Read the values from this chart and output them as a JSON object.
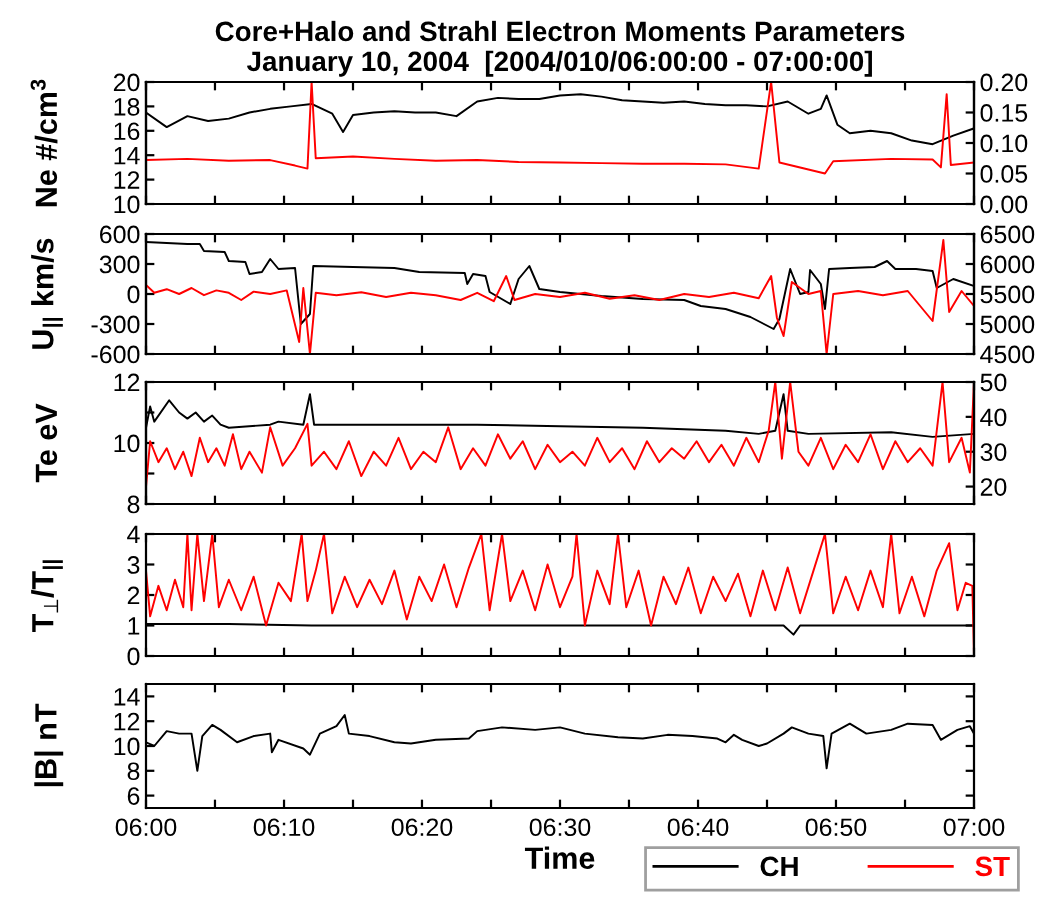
{
  "chart_data": [
    {
      "type": "line",
      "title": "Core+Halo and Strahl Electron Moments Parameters",
      "subtitle": "January 10, 2004  [2004/010/06:00:00 - 07:00:00]",
      "ylabel": "Ne #/cm$^{3}$",
      "legend": "bottom right",
      "tick_labels": "y",
      "grid": false,
      "xlim": [
        6.0,
        7.0
      ],
      "xticks": [
        {
          "value": 6.0,
          "label": null
        },
        {
          "value": 6.0833,
          "label": null
        },
        {
          "value": 6.1667,
          "label": null
        },
        {
          "value": 6.25,
          "label": null
        },
        {
          "value": 6.3333,
          "label": null
        },
        {
          "value": 6.4167,
          "label": null
        },
        {
          "value": 6.5,
          "label": null
        },
        {
          "value": 6.5833,
          "label": null
        },
        {
          "value": 6.6667,
          "label": null
        },
        {
          "value": 6.75,
          "label": null
        },
        {
          "value": 6.8333,
          "label": null
        },
        {
          "value": 6.9167,
          "label": null
        },
        {
          "value": 7.0,
          "label": null
        }
      ],
      "ylim": [
        10,
        20
      ],
      "yticks": [
        10,
        12,
        14,
        16,
        18,
        20
      ],
      "y2lim": [
        0,
        0.2
      ],
      "y2ticks": [
        {
          "value": 0,
          "label": "0.00"
        },
        {
          "value": 0.05,
          "label": "0.05"
        },
        {
          "value": 0.1,
          "label": "0.10"
        },
        {
          "value": 0.15,
          "label": "0.15"
        },
        {
          "value": 0.2,
          "label": "0.20"
        }
      ],
      "series": [
        {
          "name": "CH",
          "color": "#000000",
          "x": [
            6.0,
            6.025,
            6.05,
            6.075,
            6.1,
            6.125,
            6.15,
            6.175,
            6.2,
            6.225,
            6.238,
            6.25,
            6.275,
            6.3,
            6.325,
            6.35,
            6.375,
            6.4,
            6.425,
            6.45,
            6.475,
            6.5,
            6.525,
            6.55,
            6.575,
            6.6,
            6.625,
            6.65,
            6.675,
            6.7,
            6.725,
            6.75,
            6.775,
            6.8,
            6.815,
            6.822,
            6.835,
            6.85,
            6.875,
            6.9,
            6.925,
            6.95,
            6.975,
            7.0
          ],
          "values": [
            17.5,
            16.3,
            17.2,
            16.8,
            17.0,
            17.5,
            17.8,
            18.0,
            18.2,
            17.4,
            15.9,
            17.3,
            17.5,
            17.6,
            17.5,
            17.5,
            17.2,
            18.4,
            18.7,
            18.6,
            18.6,
            18.9,
            19.0,
            18.8,
            18.5,
            18.4,
            18.3,
            18.4,
            18.2,
            18.1,
            18.1,
            18.0,
            18.4,
            17.4,
            17.8,
            18.9,
            16.5,
            15.8,
            16.0,
            15.8,
            15.2,
            14.9,
            15.6,
            16.2
          ]
        },
        {
          "name": "ST",
          "color": "#ff0000",
          "axis": "y2",
          "x": [
            6.0,
            6.05,
            6.1,
            6.15,
            6.18,
            6.195,
            6.2,
            6.205,
            6.25,
            6.3,
            6.35,
            6.4,
            6.45,
            6.5,
            6.55,
            6.6,
            6.65,
            6.7,
            6.74,
            6.755,
            6.765,
            6.82,
            6.83,
            6.9,
            6.95,
            6.96,
            6.967,
            6.972,
            7.0
          ],
          "values": [
            0.072,
            0.074,
            0.071,
            0.072,
            0.063,
            0.058,
            0.2,
            0.075,
            0.078,
            0.074,
            0.071,
            0.072,
            0.069,
            0.068,
            0.067,
            0.066,
            0.066,
            0.065,
            0.058,
            0.2,
            0.068,
            0.05,
            0.07,
            0.074,
            0.073,
            0.06,
            0.18,
            0.064,
            0.068
          ]
        }
      ]
    },
    {
      "type": "line",
      "ylabel": "U$_{||}$ km/s",
      "tick_labels": "y",
      "grid": false,
      "xlim": [
        6.0,
        7.0
      ],
      "xticks": [
        {
          "value": 6.0,
          "label": null
        },
        {
          "value": 6.0833,
          "label": null
        },
        {
          "value": 6.1667,
          "label": null
        },
        {
          "value": 6.25,
          "label": null
        },
        {
          "value": 6.3333,
          "label": null
        },
        {
          "value": 6.4167,
          "label": null
        },
        {
          "value": 6.5,
          "label": null
        },
        {
          "value": 6.5833,
          "label": null
        },
        {
          "value": 6.6667,
          "label": null
        },
        {
          "value": 6.75,
          "label": null
        },
        {
          "value": 6.8333,
          "label": null
        },
        {
          "value": 6.9167,
          "label": null
        },
        {
          "value": 7.0,
          "label": null
        }
      ],
      "ylim": [
        -600,
        600
      ],
      "yticks": [
        -600,
        -300,
        0,
        300,
        600
      ],
      "y2lim": [
        4500,
        6500
      ],
      "y2ticks": [
        4500,
        5000,
        5500,
        6000,
        6500
      ],
      "series": [
        {
          "color": "#000000",
          "x": [
            6.0,
            6.05,
            6.065,
            6.07,
            6.095,
            6.1,
            6.12,
            6.125,
            6.14,
            6.15,
            6.16,
            6.18,
            6.187,
            6.198,
            6.202,
            6.25,
            6.3,
            6.33,
            6.385,
            6.388,
            6.395,
            6.41,
            6.415,
            6.44,
            6.45,
            6.463,
            6.475,
            6.5,
            6.55,
            6.6,
            6.65,
            6.67,
            6.7,
            6.73,
            6.758,
            6.765,
            6.778,
            6.79,
            6.8,
            6.802,
            6.815,
            6.82,
            6.825,
            6.85,
            6.88,
            6.895,
            6.905,
            6.93,
            6.95,
            6.955,
            6.975,
            7.0
          ],
          "values": [
            520,
            500,
            500,
            430,
            420,
            330,
            320,
            200,
            220,
            350,
            250,
            260,
            -300,
            -200,
            280,
            270,
            260,
            220,
            210,
            100,
            200,
            180,
            20,
            -100,
            150,
            280,
            50,
            20,
            -20,
            -50,
            -60,
            -120,
            -150,
            -230,
            -350,
            -250,
            250,
            0,
            20,
            240,
            100,
            -150,
            250,
            260,
            270,
            330,
            250,
            250,
            230,
            60,
            150,
            80
          ]
        },
        {
          "color": "#ff0000",
          "axis": "y2",
          "x": [
            6.0,
            6.01,
            6.025,
            6.04,
            6.055,
            6.07,
            6.085,
            6.1,
            6.115,
            6.13,
            6.15,
            6.17,
            6.185,
            6.19,
            6.198,
            6.205,
            6.23,
            6.26,
            6.29,
            6.32,
            6.35,
            6.38,
            6.4,
            6.42,
            6.435,
            6.445,
            6.47,
            6.5,
            6.53,
            6.56,
            6.59,
            6.62,
            6.65,
            6.68,
            6.71,
            6.74,
            6.755,
            6.762,
            6.77,
            6.78,
            6.8,
            6.815,
            6.822,
            6.83,
            6.86,
            6.89,
            6.92,
            6.95,
            6.963,
            6.97,
            6.985,
            7.0
          ],
          "values": [
            5650,
            5520,
            5580,
            5500,
            5600,
            5480,
            5560,
            5520,
            5400,
            5540,
            5500,
            5560,
            4700,
            5600,
            4500,
            5520,
            5480,
            5530,
            5450,
            5520,
            5480,
            5400,
            5520,
            5380,
            5800,
            5400,
            5500,
            5450,
            5520,
            5420,
            5480,
            5400,
            5500,
            5450,
            5520,
            5430,
            5800,
            5100,
            4800,
            5700,
            5500,
            5550,
            4500,
            5500,
            5550,
            5480,
            5550,
            5050,
            6400,
            5200,
            5550,
            5300
          ]
        }
      ]
    },
    {
      "type": "line",
      "ylabel": "Te eV",
      "tick_labels": "y",
      "grid": false,
      "xlim": [
        6.0,
        7.0
      ],
      "xticks": [
        {
          "value": 6.0,
          "label": null
        },
        {
          "value": 6.0833,
          "label": null
        },
        {
          "value": 6.1667,
          "label": null
        },
        {
          "value": 6.25,
          "label": null
        },
        {
          "value": 6.3333,
          "label": null
        },
        {
          "value": 6.4167,
          "label": null
        },
        {
          "value": 6.5,
          "label": null
        },
        {
          "value": 6.5833,
          "label": null
        },
        {
          "value": 6.6667,
          "label": null
        },
        {
          "value": 6.75,
          "label": null
        },
        {
          "value": 6.8333,
          "label": null
        },
        {
          "value": 6.9167,
          "label": null
        },
        {
          "value": 7.0,
          "label": null
        }
      ],
      "ylim": [
        8,
        12
      ],
      "yticks": [
        8,
        {
          "value": 9,
          "label": null
        },
        10,
        {
          "value": 11,
          "label": null
        },
        12
      ],
      "y2lim": [
        15,
        50
      ],
      "y2ticks": [
        20,
        30,
        40,
        50
      ],
      "series": [
        {
          "color": "#000000",
          "x": [
            6.0,
            6.005,
            6.01,
            6.028,
            6.04,
            6.05,
            6.06,
            6.07,
            6.08,
            6.09,
            6.1,
            6.15,
            6.16,
            6.19,
            6.198,
            6.203,
            6.3,
            6.4,
            6.5,
            6.6,
            6.7,
            6.74,
            6.76,
            6.77,
            6.775,
            6.8,
            6.9,
            6.95,
            7.0
          ],
          "values": [
            10.5,
            11.2,
            10.7,
            11.4,
            11.0,
            10.8,
            11.0,
            10.7,
            10.9,
            10.6,
            10.5,
            10.6,
            10.7,
            10.6,
            11.6,
            10.6,
            10.6,
            10.6,
            10.55,
            10.5,
            10.4,
            10.3,
            10.4,
            11.6,
            10.4,
            10.3,
            10.35,
            10.2,
            10.3
          ]
        },
        {
          "color": "#ff0000",
          "axis": "y2",
          "x": [
            6.0,
            6.005,
            6.015,
            6.025,
            6.035,
            6.045,
            6.055,
            6.065,
            6.075,
            6.085,
            6.095,
            6.105,
            6.115,
            6.125,
            6.14,
            6.15,
            6.165,
            6.18,
            6.195,
            6.2,
            6.215,
            6.23,
            6.245,
            6.26,
            6.275,
            6.29,
            6.305,
            6.32,
            6.335,
            6.35,
            6.365,
            6.38,
            6.395,
            6.41,
            6.425,
            6.44,
            6.455,
            6.47,
            6.485,
            6.5,
            6.515,
            6.53,
            6.545,
            6.56,
            6.575,
            6.59,
            6.605,
            6.62,
            6.635,
            6.65,
            6.665,
            6.68,
            6.695,
            6.71,
            6.725,
            6.74,
            6.752,
            6.76,
            6.768,
            6.778,
            6.788,
            6.8,
            6.815,
            6.83,
            6.845,
            6.86,
            6.875,
            6.89,
            6.905,
            6.92,
            6.935,
            6.95,
            6.962,
            6.97,
            6.985,
            6.995,
            7.0
          ],
          "values": [
            20,
            33,
            27,
            31,
            25,
            30,
            23,
            34,
            27,
            31,
            26,
            35,
            25,
            30,
            24,
            37,
            26,
            31,
            38,
            26,
            30,
            25,
            33,
            23,
            30,
            26,
            34,
            25,
            30,
            27,
            37,
            25,
            31,
            26,
            35,
            28,
            33,
            25,
            32,
            27,
            30,
            26,
            34,
            27,
            31,
            25,
            33,
            27,
            31,
            28,
            33,
            27,
            32,
            26,
            34,
            27,
            36,
            50,
            28,
            50,
            30,
            26,
            34,
            25,
            32,
            27,
            35,
            25,
            33,
            27,
            31,
            26,
            50,
            27,
            34,
            24,
            50
          ]
        }
      ]
    },
    {
      "type": "line",
      "ylabel": "T$_{⊥}$/T$_{||}$",
      "tick_labels": "y",
      "grid": false,
      "xlim": [
        6.0,
        7.0
      ],
      "xticks": [
        {
          "value": 6.0,
          "label": null
        },
        {
          "value": 6.0833,
          "label": null
        },
        {
          "value": 6.1667,
          "label": null
        },
        {
          "value": 6.25,
          "label": null
        },
        {
          "value": 6.3333,
          "label": null
        },
        {
          "value": 6.4167,
          "label": null
        },
        {
          "value": 6.5,
          "label": null
        },
        {
          "value": 6.5833,
          "label": null
        },
        {
          "value": 6.6667,
          "label": null
        },
        {
          "value": 6.75,
          "label": null
        },
        {
          "value": 6.8333,
          "label": null
        },
        {
          "value": 6.9167,
          "label": null
        },
        {
          "value": 7.0,
          "label": null
        }
      ],
      "ylim": [
        0,
        4
      ],
      "yticks": [
        0,
        1,
        2,
        3,
        4
      ],
      "series": [
        {
          "color": "#000000",
          "x": [
            6.0,
            6.1,
            6.2,
            6.5,
            6.77,
            6.782,
            6.79,
            7.0
          ],
          "values": [
            1.05,
            1.05,
            1.0,
            1.0,
            1.0,
            0.7,
            1.0,
            1.0
          ]
        },
        {
          "color": "#ff0000",
          "x": [
            6.0,
            6.005,
            6.015,
            6.025,
            6.035,
            6.045,
            6.05,
            6.055,
            6.062,
            6.07,
            6.08,
            6.088,
            6.1,
            6.115,
            6.13,
            6.145,
            6.16,
            6.175,
            6.188,
            6.195,
            6.205,
            6.215,
            6.225,
            6.24,
            6.255,
            6.27,
            6.285,
            6.3,
            6.315,
            6.33,
            6.345,
            6.36,
            6.375,
            6.39,
            6.405,
            6.415,
            6.43,
            6.44,
            6.455,
            6.47,
            6.485,
            6.5,
            6.515,
            6.52,
            6.53,
            6.545,
            6.56,
            6.57,
            6.58,
            6.595,
            6.61,
            6.625,
            6.64,
            6.655,
            6.67,
            6.685,
            6.7,
            6.715,
            6.73,
            6.745,
            6.76,
            6.775,
            6.79,
            6.805,
            6.82,
            6.83,
            6.845,
            6.86,
            6.875,
            6.89,
            6.9,
            6.91,
            6.925,
            6.94,
            6.955,
            6.97,
            6.98,
            6.99,
            6.998,
            7.0
          ],
          "values": [
            2.8,
            1.3,
            2.3,
            1.5,
            2.5,
            1.6,
            4,
            1.5,
            4,
            1.8,
            4,
            1.6,
            2.5,
            1.5,
            2.6,
            1.0,
            2.4,
            1.8,
            4,
            1.8,
            2.8,
            4,
            1.4,
            2.6,
            1.6,
            2.5,
            1.7,
            2.8,
            1.2,
            2.6,
            1.8,
            3.0,
            1.6,
            2.9,
            4,
            1.5,
            4,
            1.8,
            2.8,
            1.5,
            3.0,
            1.6,
            2.6,
            4,
            1.0,
            2.8,
            1.7,
            4,
            1.6,
            2.8,
            1.0,
            2.6,
            1.7,
            2.9,
            1.4,
            2.6,
            1.8,
            2.7,
            1.3,
            2.8,
            1.5,
            2.9,
            1.4,
            2.7,
            4,
            1.4,
            2.6,
            1.5,
            2.8,
            1.6,
            4,
            1.4,
            2.6,
            1.3,
            2.8,
            3.7,
            1.5,
            2.4,
            2.3,
            0
          ]
        }
      ]
    },
    {
      "type": "line",
      "ylabel": "|B| nT",
      "xlabel": "Time",
      "grid": false,
      "xlim": [
        6.0,
        7.0
      ],
      "xticks": [
        {
          "value": 6.0,
          "label": "06:00"
        },
        {
          "value": 6.0833,
          "label": null
        },
        {
          "value": 6.1667,
          "label": "06:10"
        },
        {
          "value": 6.25,
          "label": null
        },
        {
          "value": 6.3333,
          "label": "06:20"
        },
        {
          "value": 6.4167,
          "label": null
        },
        {
          "value": 6.5,
          "label": "06:30"
        },
        {
          "value": 6.5833,
          "label": null
        },
        {
          "value": 6.6667,
          "label": "06:40"
        },
        {
          "value": 6.75,
          "label": null
        },
        {
          "value": 6.8333,
          "label": "06:50"
        },
        {
          "value": 6.9167,
          "label": null
        },
        {
          "value": 7.0,
          "label": "07:00"
        }
      ],
      "ylim": [
        5,
        15
      ],
      "yticks": [
        6,
        8,
        10,
        12,
        14
      ],
      "series": [
        {
          "color": "#000000",
          "x": [
            6.0,
            6.01,
            6.025,
            6.04,
            6.055,
            6.062,
            6.068,
            6.08,
            6.09,
            6.11,
            6.13,
            6.15,
            6.152,
            6.16,
            6.19,
            6.198,
            6.21,
            6.23,
            6.24,
            6.245,
            6.27,
            6.3,
            6.32,
            6.35,
            6.39,
            6.4,
            6.43,
            6.47,
            6.5,
            6.53,
            6.57,
            6.6,
            6.63,
            6.66,
            6.69,
            6.7,
            6.71,
            6.72,
            6.74,
            6.75,
            6.77,
            6.78,
            6.8,
            6.818,
            6.822,
            6.828,
            6.85,
            6.87,
            6.9,
            6.92,
            6.95,
            6.96,
            6.98,
            6.995,
            7.0
          ],
          "values": [
            10.3,
            10.0,
            11.2,
            11.0,
            11.0,
            8.0,
            10.8,
            11.7,
            11.3,
            10.3,
            10.8,
            11.0,
            9.5,
            10.5,
            9.8,
            9.3,
            11.0,
            11.6,
            12.5,
            11.0,
            10.8,
            10.3,
            10.2,
            10.5,
            10.6,
            11.2,
            11.5,
            11.3,
            11.5,
            11.0,
            10.7,
            10.6,
            10.9,
            10.8,
            10.6,
            10.3,
            10.9,
            10.5,
            10.0,
            10.2,
            11.0,
            11.5,
            11.0,
            10.8,
            8.2,
            11.0,
            11.8,
            11.0,
            11.3,
            11.8,
            11.7,
            10.5,
            11.3,
            11.6,
            11.0
          ]
        }
      ]
    }
  ]
}
